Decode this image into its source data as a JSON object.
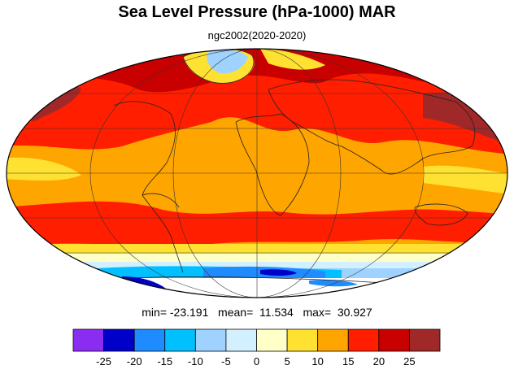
{
  "title": "Sea Level Pressure (hPa-1000) MAR",
  "subtitle": "ngc2002(2020-2020)",
  "stats": {
    "min_label": "min=",
    "min": "-23.191",
    "mean_label": "mean=",
    "mean": "11.534",
    "max_label": "max=",
    "max": "30.927"
  },
  "colorbar": {
    "colors": [
      "#8b2df0",
      "#0000c8",
      "#1e8cff",
      "#00c0ff",
      "#9fd2ff",
      "#d2f0ff",
      "#ffffc8",
      "#ffe132",
      "#ffa500",
      "#ff1e00",
      "#c80000",
      "#a02828"
    ],
    "tick_labels": [
      "-25",
      "-20",
      "-15",
      "-10",
      "-5",
      "0",
      "5",
      "10",
      "15",
      "20",
      "25"
    ]
  }
}
